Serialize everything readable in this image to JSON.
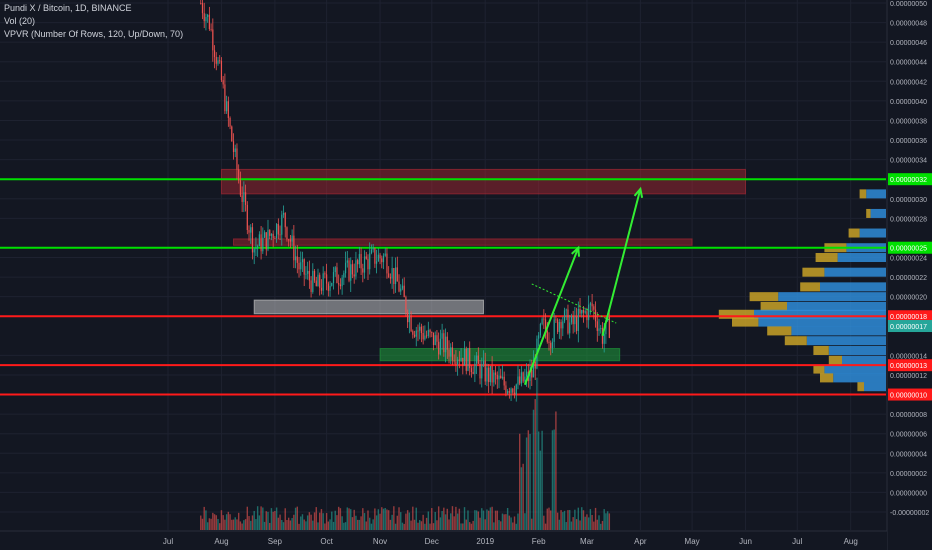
{
  "chart_data": {
    "type": "candlestick",
    "symbol": "Pundi X / Bitcoin, 1D, BINANCE",
    "indicators": [
      "Vol (20)",
      "VPVR (Number Of Rows, 120, Up/Down, 70)"
    ],
    "x_tick_labels": [
      "Jul",
      "Aug",
      "Sep",
      "Oct",
      "Nov",
      "Dec",
      "2019",
      "Feb",
      "Mar",
      "Apr",
      "May",
      "Jun",
      "Jul",
      "Aug"
    ],
    "y_tick_labels": [
      "0.00000050",
      "0.00000048",
      "0.00000046",
      "0.00000044",
      "0.00000042",
      "0.00000040",
      "0.00000038",
      "0.00000036",
      "0.00000034",
      "0.00000030",
      "0.00000028",
      "0.00000024",
      "0.00000022",
      "0.00000020",
      "0.00000014",
      "0.00000012",
      "0.00000008",
      "0.00000006",
      "0.00000004",
      "0.00000002",
      "0.00000000",
      "-0.00000002"
    ],
    "y_range": [
      -2e-08,
      5e-07
    ],
    "horizontal_levels": [
      {
        "label": "0.00000032",
        "value": 3.2e-07,
        "color": "#00e000"
      },
      {
        "label": "0.00000025",
        "value": 2.5e-07,
        "color": "#00e000"
      },
      {
        "label": "0.00000018",
        "value": 1.8e-07,
        "color": "#ff1a1a"
      },
      {
        "label": "0.00000013",
        "value": 1.3e-07,
        "color": "#ff1a1a"
      },
      {
        "label": "0.00000010",
        "value": 1e-07,
        "color": "#ff1a1a"
      }
    ],
    "current_price_label": "0.00000017",
    "zones": [
      {
        "color": "#b22833",
        "from": "2018-08-01",
        "to": "2019-06-01",
        "low": 3.05e-07,
        "high": 3.3e-07
      },
      {
        "color": "#b22833",
        "from": "2018-08-08",
        "to": "2019-05-01",
        "low": 2.525e-07,
        "high": 2.59e-07
      },
      {
        "color": "#d0d0d0",
        "from": "2018-08-20",
        "to": "2018-12-31",
        "low": 1.825e-07,
        "high": 1.965e-07
      },
      {
        "color": "#1f9e3c",
        "from": "2018-11-01",
        "to": "2019-03-20",
        "low": 1.345e-07,
        "high": 1.47e-07
      }
    ],
    "price_path": [
      [
        "2018-07-20",
        5e-07
      ],
      [
        "2018-07-25",
        4.8e-07
      ],
      [
        "2018-08-01",
        4.2e-07
      ],
      [
        "2018-08-06",
        3.7e-07
      ],
      [
        "2018-08-12",
        3.1e-07
      ],
      [
        "2018-08-20",
        2.5e-07
      ],
      [
        "2018-08-28",
        2.6e-07
      ],
      [
        "2018-09-06",
        2.8e-07
      ],
      [
        "2018-09-15",
        2.3e-07
      ],
      [
        "2018-09-25",
        2.1e-07
      ],
      [
        "2018-10-06",
        2.2e-07
      ],
      [
        "2018-10-18",
        2.3e-07
      ],
      [
        "2018-10-28",
        2.4e-07
      ],
      [
        "2018-11-04",
        2.4e-07
      ],
      [
        "2018-11-12",
        2.1e-07
      ],
      [
        "2018-11-20",
        1.7e-07
      ],
      [
        "2018-11-28",
        1.6e-07
      ],
      [
        "2018-12-08",
        1.5e-07
      ],
      [
        "2018-12-18",
        1.4e-07
      ],
      [
        "2018-12-26",
        1.3e-07
      ],
      [
        "2019-01-02",
        1.2e-07
      ],
      [
        "2019-01-12",
        1.1e-07
      ],
      [
        "2019-01-20",
        1.1e-07
      ],
      [
        "2019-01-28",
        1.2e-07
      ],
      [
        "2019-02-03",
        1.7e-07
      ],
      [
        "2019-02-08",
        1.6e-07
      ],
      [
        "2019-02-14",
        1.8e-07
      ],
      [
        "2019-02-20",
        1.7e-07
      ],
      [
        "2019-02-26",
        1.8e-07
      ],
      [
        "2019-03-04",
        1.9e-07
      ],
      [
        "2019-03-10",
        1.6e-07
      ],
      [
        "2019-03-14",
        1.7e-07
      ]
    ],
    "arrows": [
      {
        "from": [
          "2019-01-24",
          1.1e-07
        ],
        "to": [
          "2019-02-24",
          2.5e-07
        ],
        "color": "#33ee33"
      },
      {
        "from": [
          "2019-03-10",
          1.6e-07
        ],
        "to": [
          "2019-04-01",
          3.1e-07
        ],
        "color": "#33ee33"
      }
    ],
    "trendline": {
      "from": [
        "2019-01-28",
        2.13e-07
      ],
      "to": [
        "2019-03-18",
        1.73e-07
      ],
      "color": "#33ee33"
    },
    "volume_profile_buckets": [
      {
        "price": 3.05e-07,
        "up": 0.09,
        "down": 0.03
      },
      {
        "price": 2.85e-07,
        "up": 0.07,
        "down": 0.02
      },
      {
        "price": 2.65e-07,
        "up": 0.12,
        "down": 0.05
      },
      {
        "price": 2.5e-07,
        "up": 0.18,
        "down": 0.1
      },
      {
        "price": 2.4e-07,
        "up": 0.22,
        "down": 0.1
      },
      {
        "price": 2.25e-07,
        "up": 0.28,
        "down": 0.1
      },
      {
        "price": 2.1e-07,
        "up": 0.3,
        "down": 0.09
      },
      {
        "price": 2e-07,
        "up": 0.49,
        "down": 0.13
      },
      {
        "price": 1.9e-07,
        "up": 0.45,
        "down": 0.12
      },
      {
        "price": 1.82e-07,
        "up": 0.6,
        "down": 0.16
      },
      {
        "price": 1.74e-07,
        "up": 0.58,
        "down": 0.12
      },
      {
        "price": 1.65e-07,
        "up": 0.43,
        "down": 0.11
      },
      {
        "price": 1.55e-07,
        "up": 0.36,
        "down": 0.1
      },
      {
        "price": 1.45e-07,
        "up": 0.26,
        "down": 0.07
      },
      {
        "price": 1.35e-07,
        "up": 0.2,
        "down": 0.06
      },
      {
        "price": 1.26e-07,
        "up": 0.28,
        "down": 0.05
      },
      {
        "price": 1.17e-07,
        "up": 0.24,
        "down": 0.06
      },
      {
        "price": 1.08e-07,
        "up": 0.1,
        "down": 0.03
      }
    ],
    "volume_spike_dates": [
      "2019-01-22",
      "2019-01-26",
      "2019-01-30",
      "2019-02-02",
      "2019-02-10"
    ],
    "colors": {
      "background": "#131722",
      "up": "#26a69a",
      "down": "#ef5350",
      "vp_up": "#2f8cd8",
      "vp_down": "#c9a227"
    }
  }
}
